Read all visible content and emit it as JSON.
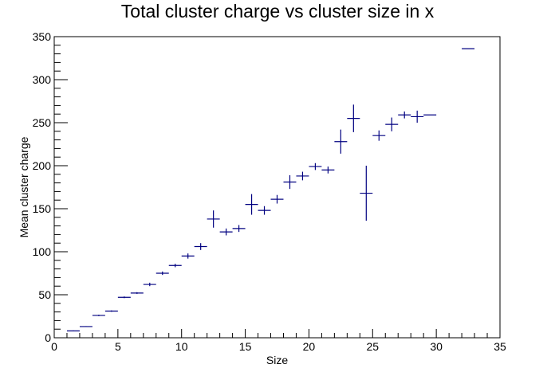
{
  "chart_data": {
    "type": "scatter",
    "title": "Total cluster charge vs cluster size in x",
    "xlabel": "Size",
    "ylabel": "Mean cluster charge",
    "xlim": [
      0,
      35
    ],
    "ylim": [
      0,
      350
    ],
    "x_ticks": [
      "0",
      "5",
      "10",
      "15",
      "20",
      "25",
      "30",
      "35"
    ],
    "y_ticks": [
      "0",
      "50",
      "100",
      "150",
      "200",
      "250",
      "300",
      "350"
    ],
    "grid": false,
    "legend": "none",
    "series_color": "#000080",
    "points": [
      {
        "x": 1.5,
        "y": 8,
        "yerr": 0.5
      },
      {
        "x": 2.5,
        "y": 13,
        "yerr": 0.5
      },
      {
        "x": 3.5,
        "y": 26,
        "yerr": 0.8
      },
      {
        "x": 4.5,
        "y": 31,
        "yerr": 0.8
      },
      {
        "x": 5.5,
        "y": 47,
        "yerr": 1
      },
      {
        "x": 6.5,
        "y": 52,
        "yerr": 1
      },
      {
        "x": 7.5,
        "y": 62,
        "yerr": 2
      },
      {
        "x": 8.5,
        "y": 75,
        "yerr": 2
      },
      {
        "x": 9.5,
        "y": 84,
        "yerr": 2
      },
      {
        "x": 10.5,
        "y": 95,
        "yerr": 3
      },
      {
        "x": 11.5,
        "y": 106,
        "yerr": 4
      },
      {
        "x": 12.5,
        "y": 138,
        "yerr": 10
      },
      {
        "x": 13.5,
        "y": 123,
        "yerr": 4
      },
      {
        "x": 14.5,
        "y": 127,
        "yerr": 4
      },
      {
        "x": 15.5,
        "y": 155,
        "yerr": 12
      },
      {
        "x": 16.5,
        "y": 148,
        "yerr": 5
      },
      {
        "x": 17.5,
        "y": 161,
        "yerr": 5
      },
      {
        "x": 18.5,
        "y": 181,
        "yerr": 8
      },
      {
        "x": 19.5,
        "y": 188,
        "yerr": 5
      },
      {
        "x": 20.5,
        "y": 199,
        "yerr": 4
      },
      {
        "x": 21.5,
        "y": 195,
        "yerr": 4
      },
      {
        "x": 22.5,
        "y": 228,
        "yerr": 14
      },
      {
        "x": 23.5,
        "y": 255,
        "yerr": 16
      },
      {
        "x": 24.5,
        "y": 168,
        "yerr": 32
      },
      {
        "x": 25.5,
        "y": 235,
        "yerr": 6
      },
      {
        "x": 26.5,
        "y": 248,
        "yerr": 8
      },
      {
        "x": 27.5,
        "y": 259,
        "yerr": 4
      },
      {
        "x": 28.5,
        "y": 257,
        "yerr": 7
      },
      {
        "x": 29.5,
        "y": 259,
        "yerr": 0
      },
      {
        "x": 32.5,
        "y": 336,
        "yerr": 0
      }
    ]
  }
}
